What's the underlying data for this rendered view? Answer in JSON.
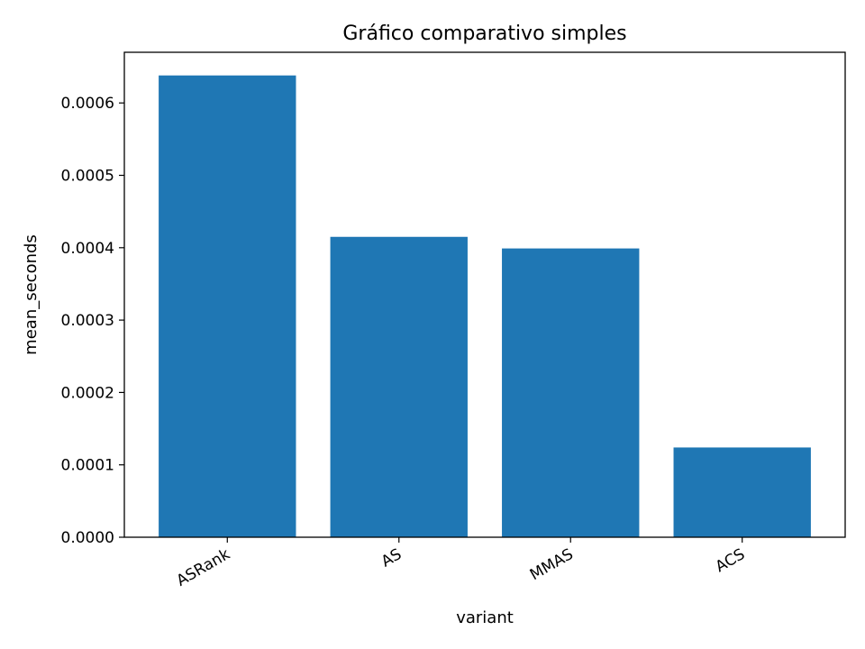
{
  "chart_data": {
    "type": "bar",
    "title": "Gráfico comparativo simples",
    "xlabel": "variant",
    "ylabel": "mean_seconds",
    "categories": [
      "ASRank",
      "AS",
      "MMAS",
      "ACS"
    ],
    "values": [
      0.000638,
      0.000415,
      0.000399,
      0.000124
    ],
    "ylim": [
      0,
      0.00067
    ],
    "yticks": [
      0.0,
      0.0001,
      0.0002,
      0.0003,
      0.0004,
      0.0005,
      0.0006
    ],
    "ytick_labels": [
      "0.0000",
      "0.0001",
      "0.0002",
      "0.0003",
      "0.0004",
      "0.0005",
      "0.0006"
    ],
    "bar_color": "#1f77b4",
    "grid": false,
    "legend": false
  }
}
